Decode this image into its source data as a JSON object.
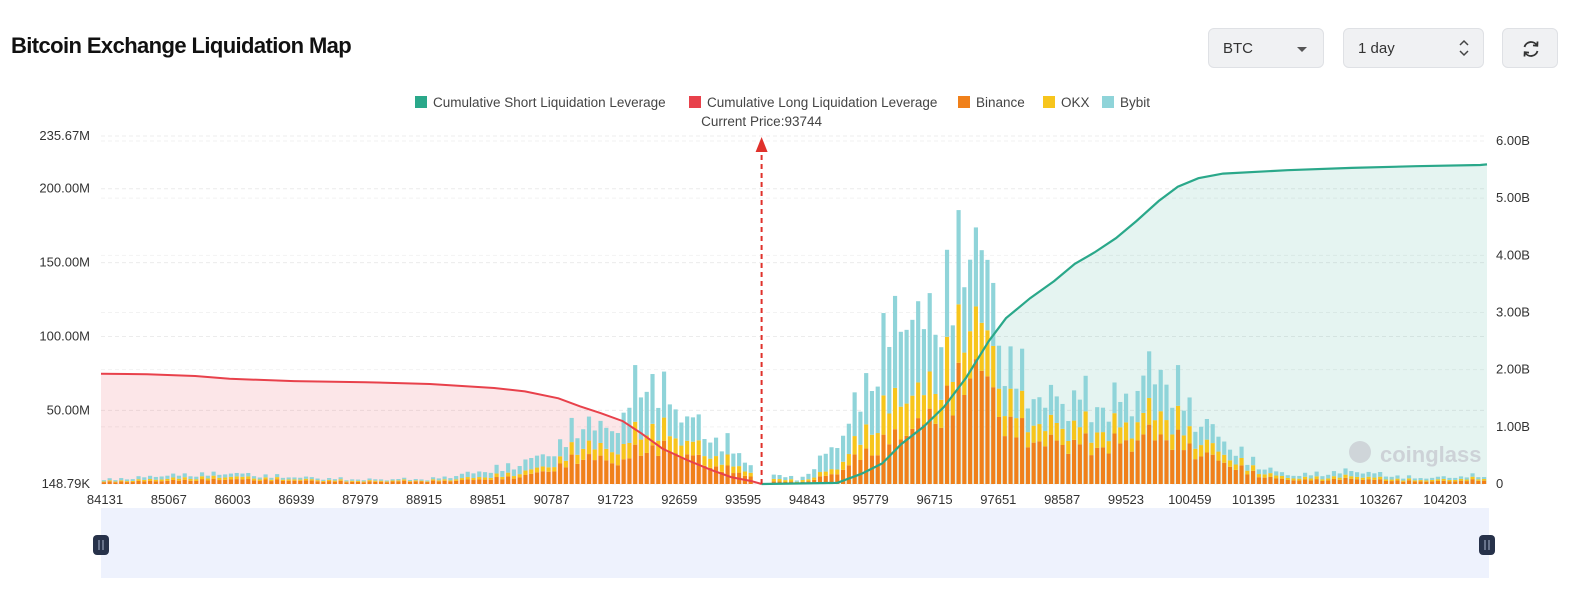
{
  "page": {
    "title": "Bitcoin Exchange Liquidation Map"
  },
  "controls": {
    "symbol": {
      "value": "BTC",
      "icon": "chevron-down-icon"
    },
    "range": {
      "value": "1 day",
      "icon": "up-down-icon"
    },
    "refresh": {
      "icon": "refresh-icon"
    }
  },
  "watermark": "coinglass",
  "colors": {
    "short_cum": "#2aa88a",
    "long_cum": "#e8414b",
    "binance": "#f0801a",
    "okx": "#f7c51c",
    "bybit": "#8fd4d9",
    "current_price_line": "#e0312b"
  },
  "chart_data": {
    "type": "bar",
    "legend": [
      "Cumulative Short Liquidation Leverage",
      "Cumulative Long Liquidation Leverage",
      "Binance",
      "OKX",
      "Bybit"
    ],
    "legend_placement": "top-center",
    "current_price": 93744,
    "current_price_label": "Current Price:93744",
    "x_tick_labels": [
      "84131",
      "85067",
      "86003",
      "86939",
      "87979",
      "88915",
      "89851",
      "90787",
      "91723",
      "92659",
      "93595",
      "94843",
      "95779",
      "96715",
      "97651",
      "98587",
      "99523",
      "100459",
      "101395",
      "102331",
      "103267",
      "104203"
    ],
    "left_axis": {
      "ticks": [
        "148.79K",
        "50.00M",
        "100.00M",
        "150.00M",
        "200.00M",
        "235.67M"
      ],
      "range": [
        0.14879,
        235.67
      ],
      "unit": "M"
    },
    "right_axis": {
      "ticks": [
        "0",
        "1.00B",
        "2.00B",
        "3.00B",
        "4.00B",
        "5.00B",
        "6.00B"
      ],
      "range": [
        0,
        6
      ],
      "unit": "B"
    },
    "x_range": [
      84131,
      104300
    ],
    "series": [
      {
        "name": "Binance",
        "points": [
          [
            84131,
            1.5
          ],
          [
            84800,
            2
          ],
          [
            85500,
            3
          ],
          [
            86003,
            3.5
          ],
          [
            86500,
            3
          ],
          [
            87000,
            2.5
          ],
          [
            87500,
            2
          ],
          [
            88000,
            1.5
          ],
          [
            88500,
            2
          ],
          [
            89000,
            2
          ],
          [
            89500,
            3
          ],
          [
            89851,
            4
          ],
          [
            90300,
            6
          ],
          [
            90787,
            12
          ],
          [
            91100,
            22
          ],
          [
            91400,
            18
          ],
          [
            91723,
            16
          ],
          [
            92000,
            28
          ],
          [
            92300,
            26
          ],
          [
            92659,
            22
          ],
          [
            93000,
            14
          ],
          [
            93300,
            10
          ],
          [
            93595,
            6
          ],
          [
            93700,
            3
          ],
          [
            94300,
            1
          ],
          [
            94843,
            8
          ],
          [
            95200,
            22
          ],
          [
            95500,
            30
          ],
          [
            95779,
            38
          ],
          [
            96100,
            45
          ],
          [
            96400,
            60
          ],
          [
            96715,
            80
          ],
          [
            96850,
            95
          ],
          [
            97050,
            70
          ],
          [
            97300,
            48
          ],
          [
            97651,
            34
          ],
          [
            98000,
            30
          ],
          [
            98300,
            32
          ],
          [
            98587,
            28
          ],
          [
            98900,
            30
          ],
          [
            99200,
            34
          ],
          [
            99523,
            38
          ],
          [
            99800,
            32
          ],
          [
            100100,
            24
          ],
          [
            100459,
            16
          ],
          [
            100800,
            10
          ],
          [
            101100,
            5
          ],
          [
            101395,
            3
          ],
          [
            101900,
            3
          ],
          [
            102331,
            4
          ],
          [
            102700,
            3
          ],
          [
            103267,
            2
          ],
          [
            103700,
            2
          ],
          [
            104203,
            3
          ],
          [
            104300,
            2
          ]
        ]
      },
      {
        "name": "OKX",
        "points": [
          [
            84131,
            0.5
          ],
          [
            85067,
            1.5
          ],
          [
            86003,
            2
          ],
          [
            86939,
            1
          ],
          [
            87979,
            0.8
          ],
          [
            88915,
            0.7
          ],
          [
            89851,
            2
          ],
          [
            90787,
            4
          ],
          [
            91100,
            10
          ],
          [
            91400,
            8
          ],
          [
            91723,
            10
          ],
          [
            92000,
            16
          ],
          [
            92300,
            14
          ],
          [
            92659,
            10
          ],
          [
            93000,
            8
          ],
          [
            93300,
            6
          ],
          [
            93595,
            3
          ],
          [
            94300,
            1
          ],
          [
            94843,
            4
          ],
          [
            95200,
            14
          ],
          [
            95500,
            24
          ],
          [
            95779,
            28
          ],
          [
            96100,
            22
          ],
          [
            96400,
            30
          ],
          [
            96715,
            38
          ],
          [
            96850,
            40
          ],
          [
            97050,
            30
          ],
          [
            97300,
            20
          ],
          [
            97651,
            14
          ],
          [
            98000,
            12
          ],
          [
            98300,
            14
          ],
          [
            98587,
            12
          ],
          [
            98900,
            12
          ],
          [
            99200,
            14
          ],
          [
            99523,
            18
          ],
          [
            99800,
            14
          ],
          [
            100100,
            10
          ],
          [
            100459,
            6
          ],
          [
            100800,
            4
          ],
          [
            101395,
            1.5
          ],
          [
            102331,
            2
          ],
          [
            103267,
            1
          ],
          [
            104203,
            1.5
          ],
          [
            104300,
            1
          ]
        ]
      },
      {
        "name": "Bybit",
        "points": [
          [
            84131,
            1
          ],
          [
            85067,
            2.5
          ],
          [
            86003,
            2.5
          ],
          [
            86939,
            1.5
          ],
          [
            87979,
            1
          ],
          [
            88915,
            1
          ],
          [
            89851,
            5
          ],
          [
            90787,
            10
          ],
          [
            91100,
            18
          ],
          [
            91400,
            14
          ],
          [
            91723,
            20
          ],
          [
            92000,
            42
          ],
          [
            92300,
            28
          ],
          [
            92659,
            18
          ],
          [
            93000,
            14
          ],
          [
            93300,
            12
          ],
          [
            93595,
            6
          ],
          [
            94300,
            1
          ],
          [
            94843,
            18
          ],
          [
            95200,
            30
          ],
          [
            95500,
            50
          ],
          [
            95779,
            64
          ],
          [
            96100,
            50
          ],
          [
            96400,
            55
          ],
          [
            96715,
            58
          ],
          [
            96850,
            60
          ],
          [
            97050,
            46
          ],
          [
            97300,
            30
          ],
          [
            97651,
            22
          ],
          [
            98000,
            18
          ],
          [
            98300,
            22
          ],
          [
            98587,
            20
          ],
          [
            98900,
            18
          ],
          [
            99200,
            24
          ],
          [
            99523,
            32
          ],
          [
            99800,
            24
          ],
          [
            100100,
            16
          ],
          [
            100459,
            10
          ],
          [
            100800,
            6
          ],
          [
            101395,
            2
          ],
          [
            102331,
            4
          ],
          [
            103267,
            1.5
          ],
          [
            104203,
            2
          ],
          [
            104300,
            1
          ]
        ]
      },
      {
        "name": "Cumulative Long Liquidation Leverage",
        "axis": "right",
        "points": [
          [
            84131,
            1.93
          ],
          [
            84800,
            1.92
          ],
          [
            85500,
            1.89
          ],
          [
            86003,
            1.84
          ],
          [
            86939,
            1.8
          ],
          [
            87979,
            1.78
          ],
          [
            88915,
            1.75
          ],
          [
            89851,
            1.68
          ],
          [
            90300,
            1.62
          ],
          [
            90787,
            1.5
          ],
          [
            91100,
            1.36
          ],
          [
            91400,
            1.24
          ],
          [
            91723,
            1.1
          ],
          [
            92000,
            0.88
          ],
          [
            92300,
            0.62
          ],
          [
            92659,
            0.42
          ],
          [
            93000,
            0.25
          ],
          [
            93300,
            0.12
          ],
          [
            93595,
            0.05
          ],
          [
            93744,
            0
          ]
        ]
      },
      {
        "name": "Cumulative Short Liquidation Leverage",
        "axis": "right",
        "points": [
          [
            93744,
            0
          ],
          [
            94843,
            0.02
          ],
          [
            95200,
            0.18
          ],
          [
            95500,
            0.36
          ],
          [
            95779,
            0.7
          ],
          [
            96100,
            1.0
          ],
          [
            96400,
            1.35
          ],
          [
            96715,
            1.85
          ],
          [
            97050,
            2.5
          ],
          [
            97300,
            2.9
          ],
          [
            97651,
            3.25
          ],
          [
            98000,
            3.55
          ],
          [
            98300,
            3.85
          ],
          [
            98587,
            4.05
          ],
          [
            98900,
            4.3
          ],
          [
            99200,
            4.6
          ],
          [
            99523,
            4.95
          ],
          [
            99800,
            5.2
          ],
          [
            100100,
            5.35
          ],
          [
            100459,
            5.43
          ],
          [
            101395,
            5.49
          ],
          [
            102331,
            5.53
          ],
          [
            103267,
            5.56
          ],
          [
            104203,
            5.58
          ],
          [
            104300,
            5.59
          ]
        ]
      }
    ]
  }
}
